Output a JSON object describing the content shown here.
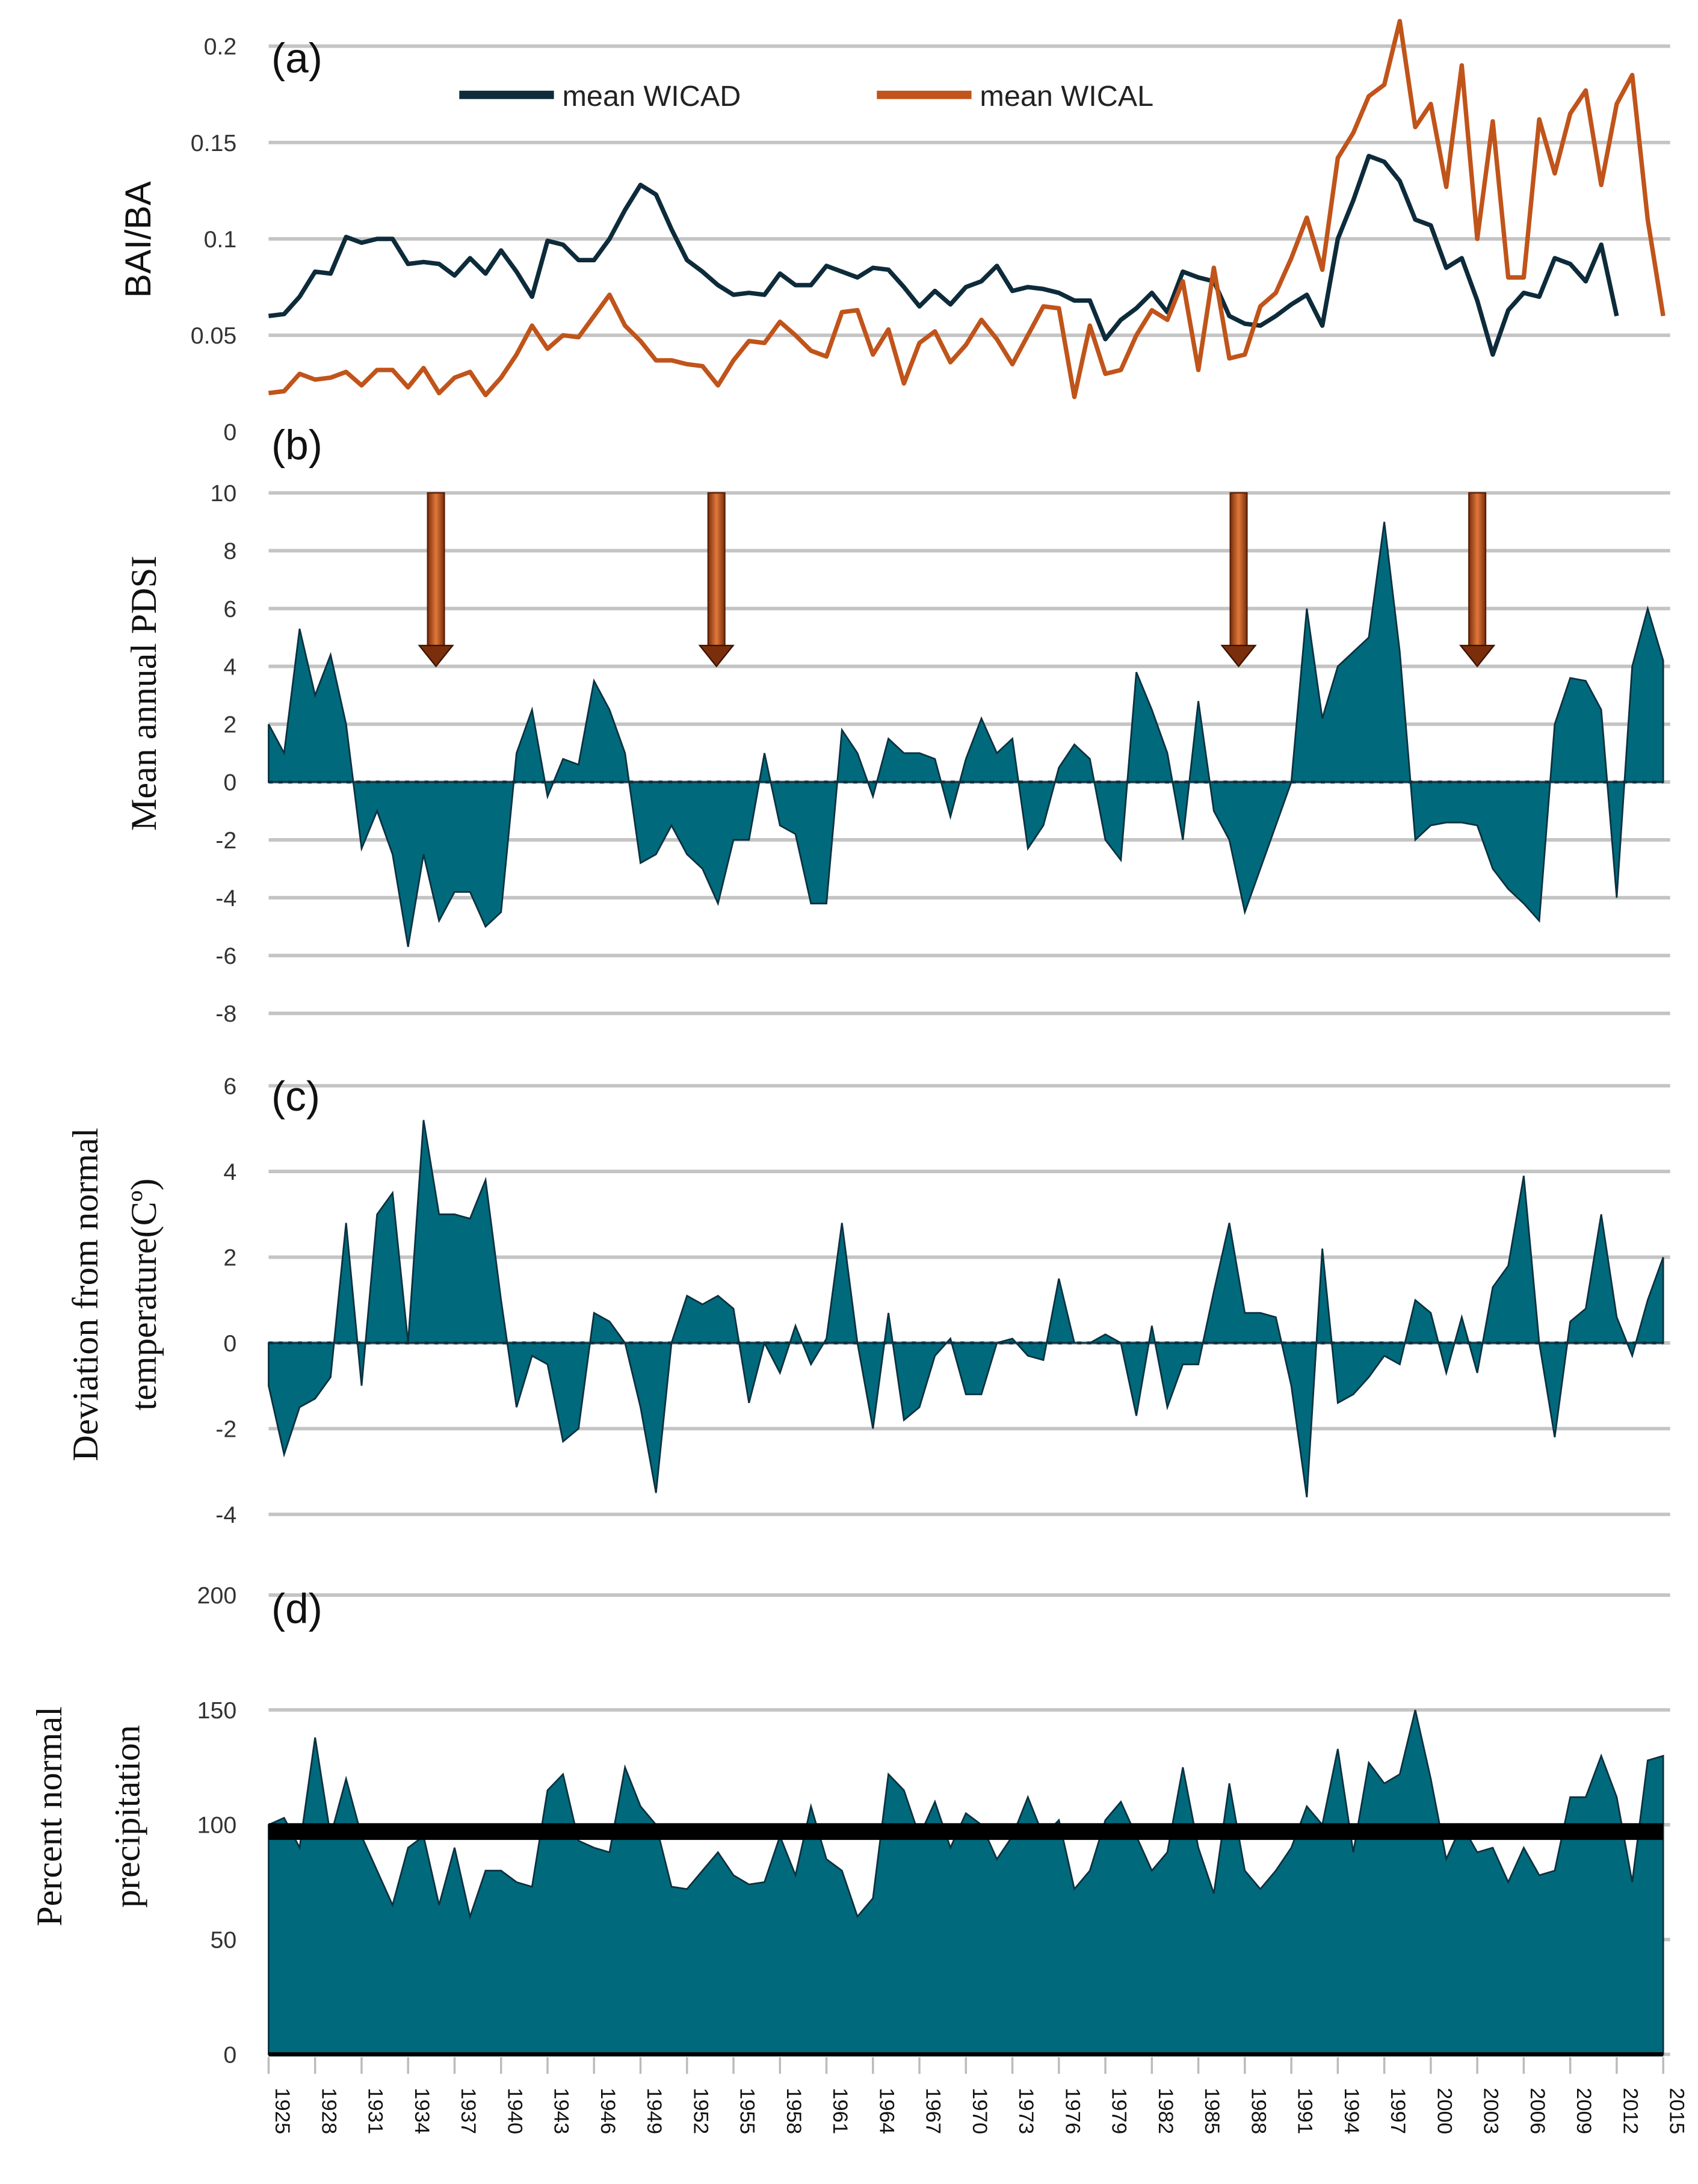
{
  "chart_data": [
    {
      "panel": "(a)",
      "type": "line",
      "ylabel": "BAI/BA",
      "ylim": [
        0,
        0.2
      ],
      "yticks": [
        "0",
        "0.05",
        "0.1",
        "0.15",
        "0.2"
      ],
      "yticks_values": [
        0,
        0.05,
        0.1,
        0.15,
        0.2
      ],
      "grid": true,
      "legend": "top-center",
      "series": [
        {
          "name": "mean WICAD",
          "color": "#0d2b3a",
          "start_year": 1925,
          "values": [
            0.06,
            0.061,
            0.07,
            0.083,
            0.082,
            0.101,
            0.098,
            0.1,
            0.1,
            0.087,
            0.088,
            0.087,
            0.081,
            0.09,
            0.082,
            0.094,
            0.083,
            0.07,
            0.099,
            0.097,
            0.089,
            0.089,
            0.1,
            0.115,
            0.128,
            0.123,
            0.105,
            0.089,
            0.083,
            0.076,
            0.071,
            0.072,
            0.071,
            0.082,
            0.076,
            0.076,
            0.086,
            0.083,
            0.08,
            0.085,
            0.084,
            0.075,
            0.065,
            0.073,
            0.066,
            0.075,
            0.078,
            0.086,
            0.073,
            0.075,
            0.074,
            0.072,
            0.068,
            0.068,
            0.048,
            0.058,
            0.064,
            0.072,
            0.062,
            0.083,
            0.08,
            0.078,
            0.06,
            0.056,
            0.055,
            0.06,
            0.066,
            0.071,
            0.055,
            0.1,
            0.12,
            0.143,
            0.14,
            0.13,
            0.11,
            0.107,
            0.085,
            0.09,
            0.068,
            0.04,
            0.063,
            0.072,
            0.07,
            0.09,
            0.087,
            0.078,
            0.097,
            0.06
          ]
        },
        {
          "name": "mean WICAL",
          "color": "#c0541a",
          "start_year": 1925,
          "values": [
            0.02,
            0.021,
            0.03,
            0.027,
            0.028,
            0.031,
            0.024,
            0.032,
            0.032,
            0.023,
            0.033,
            0.02,
            0.028,
            0.031,
            0.019,
            0.028,
            0.04,
            0.055,
            0.043,
            0.05,
            0.049,
            0.06,
            0.071,
            0.055,
            0.047,
            0.037,
            0.037,
            0.035,
            0.034,
            0.024,
            0.037,
            0.047,
            0.046,
            0.057,
            0.05,
            0.042,
            0.039,
            0.062,
            0.063,
            0.04,
            0.053,
            0.025,
            0.046,
            0.052,
            0.036,
            0.045,
            0.058,
            0.048,
            0.035,
            0.05,
            0.065,
            0.064,
            0.018,
            0.055,
            0.03,
            0.032,
            0.05,
            0.063,
            0.058,
            0.078,
            0.032,
            0.085,
            0.038,
            0.04,
            0.065,
            0.072,
            0.09,
            0.111,
            0.084,
            0.142,
            0.155,
            0.174,
            0.18,
            0.213,
            0.158,
            0.17,
            0.127,
            0.19,
            0.1,
            0.161,
            0.08,
            0.08,
            0.162,
            0.134,
            0.165,
            0.177,
            0.128,
            0.17,
            0.185,
            0.11,
            0.06
          ]
        }
      ]
    },
    {
      "panel": "(b)",
      "type": "area",
      "ylabel": "Mean annual PDSI",
      "ylim": [
        -8,
        10
      ],
      "yticks": [
        "-8",
        "-6",
        "-4",
        "-2",
        "0",
        "2",
        "4",
        "6",
        "8",
        "10"
      ],
      "yticks_values": [
        -8,
        -6,
        -4,
        -2,
        0,
        2,
        4,
        6,
        8,
        10
      ],
      "grid": true,
      "color": "#006a7c",
      "start_year": 1925,
      "values": [
        2,
        1,
        5.3,
        3,
        4.4,
        2,
        -2.3,
        -1,
        -2.5,
        -5.7,
        -2.5,
        -4.8,
        -3.8,
        -3.8,
        -5,
        -4.5,
        1,
        2.5,
        -0.5,
        0.8,
        0.6,
        3.5,
        2.5,
        1,
        -2.8,
        -2.5,
        -1.5,
        -2.5,
        -3,
        -4.2,
        -2,
        -2,
        1,
        -1.5,
        -1.8,
        -4.2,
        -4.2,
        1.8,
        1,
        -0.5,
        1.5,
        1,
        1,
        0.8,
        -1.2,
        0.8,
        2.2,
        1,
        1.5,
        -2.3,
        -1.5,
        0.5,
        1.3,
        0.8,
        -2,
        -2.7,
        3.8,
        2.5,
        1,
        -2,
        2.8,
        -1,
        -2,
        -4.5,
        -3,
        -1.5,
        0,
        6,
        2.2,
        4,
        4.5,
        5,
        9,
        4.5,
        -2,
        -1.5,
        -1.4,
        -1.4,
        -1.5,
        -3,
        -3.7,
        -4.2,
        -4.8,
        2,
        3.6,
        3.5,
        2.5,
        -4,
        4,
        6,
        4.2
      ],
      "annotations": {
        "arrow_years": [
          1935.8,
          1953.9,
          1987.6,
          2003
        ],
        "arrow_from": 10,
        "arrow_to": 4,
        "color": "#b5521a"
      }
    },
    {
      "panel": "(c)",
      "type": "area",
      "ylabel_lines": [
        "Deviation from normal",
        "temperature(Cº)"
      ],
      "ylim": [
        -4,
        6
      ],
      "yticks": [
        "-4",
        "-2",
        "0",
        "2",
        "4",
        "6"
      ],
      "yticks_values": [
        -4,
        -2,
        0,
        2,
        4,
        6
      ],
      "grid": true,
      "color": "#006a7c",
      "start_year": 1925,
      "values": [
        -1,
        -2.6,
        -1.5,
        -1.3,
        -0.8,
        2.8,
        -1,
        3,
        3.5,
        0,
        5.2,
        3,
        3,
        2.9,
        3.8,
        1,
        -1.5,
        -0.3,
        -0.5,
        -2.3,
        -2,
        0.7,
        0.5,
        0,
        -1.5,
        -3.5,
        0,
        1.1,
        0.9,
        1.1,
        0.8,
        -1.4,
        0,
        -0.7,
        0.4,
        -0.5,
        0.1,
        2.8,
        0,
        -2,
        0.7,
        -1.8,
        -1.5,
        -0.3,
        0.1,
        -1.2,
        -1.2,
        0,
        0.1,
        -0.3,
        -0.4,
        1.5,
        0,
        0,
        0.2,
        0,
        -1.7,
        0.4,
        -1.5,
        -0.5,
        -0.5,
        1.2,
        2.8,
        0.7,
        0.7,
        0.6,
        -1,
        -3.6,
        2.2,
        -1.4,
        -1.2,
        -0.8,
        -0.3,
        -0.5,
        1,
        0.7,
        -0.7,
        0.6,
        -0.7,
        1.3,
        1.8,
        3.9,
        0,
        -2.2,
        0.5,
        0.8,
        3,
        0.6,
        -0.3,
        1,
        2
      ]
    },
    {
      "panel": "(d)",
      "type": "area",
      "ylabel_lines": [
        "Percent normal",
        "precipitation"
      ],
      "ylim": [
        0,
        200
      ],
      "yticks": [
        "0",
        "50",
        "100",
        "150",
        "200"
      ],
      "yticks_values": [
        0,
        50,
        100,
        150,
        200
      ],
      "grid": true,
      "color": "#006a7c",
      "reference_line": 97,
      "start_year": 1925,
      "values": [
        100,
        103,
        90,
        138,
        95,
        120,
        95,
        80,
        65,
        90,
        95,
        65,
        90,
        60,
        80,
        80,
        75,
        73,
        115,
        122,
        93,
        90,
        88,
        125,
        108,
        100,
        73,
        72,
        80,
        88,
        78,
        74,
        75,
        95,
        78,
        108,
        85,
        80,
        60,
        68,
        122,
        115,
        95,
        110,
        90,
        105,
        100,
        85,
        95,
        112,
        95,
        102,
        72,
        80,
        102,
        110,
        95,
        80,
        88,
        125,
        90,
        70,
        118,
        80,
        72,
        80,
        90,
        108,
        100,
        133,
        88,
        127,
        118,
        122,
        150,
        120,
        85,
        100,
        88,
        90,
        75,
        90,
        78,
        80,
        112,
        112,
        130,
        112,
        75,
        128,
        130
      ]
    }
  ],
  "x_axis": {
    "range": [
      1925,
      2015
    ],
    "tick_labels": [
      "1925",
      "1928",
      "1931",
      "1934",
      "1937",
      "1940",
      "1943",
      "1946",
      "1949",
      "1952",
      "1955",
      "1958",
      "1961",
      "1964",
      "1967",
      "1970",
      "1973",
      "1976",
      "1979",
      "1982",
      "1985",
      "1988",
      "1991",
      "1994",
      "1997",
      "2000",
      "2003",
      "2006",
      "2009",
      "2012",
      "2015"
    ]
  }
}
